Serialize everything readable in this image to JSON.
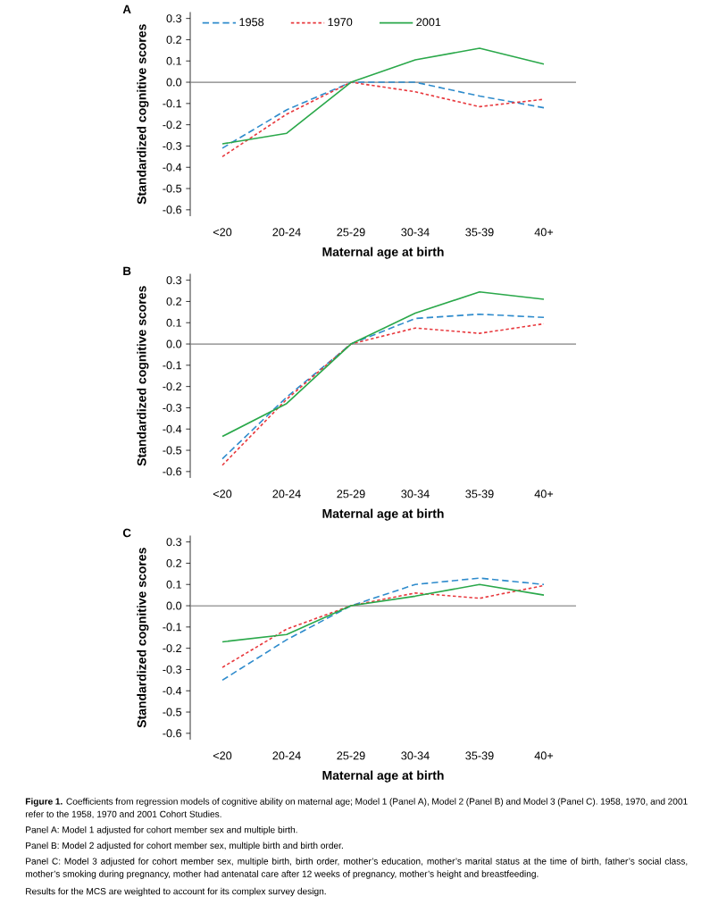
{
  "chart_data": [
    {
      "type": "line",
      "title": "A",
      "xlabel": "Maternal age at birth",
      "ylabel": "Standardized cognitive scores",
      "categories": [
        "<20",
        "20-24",
        "25-29",
        "30-34",
        "35-39",
        "40+"
      ],
      "series": [
        {
          "name": "1958",
          "color": "#2e8bcc",
          "line_style": "dashed",
          "values": [
            -0.31,
            -0.13,
            0.0,
            0.0,
            -0.065,
            -0.12
          ]
        },
        {
          "name": "1970",
          "color": "#e8383d",
          "line_style": "dotted",
          "values": [
            -0.35,
            -0.15,
            0.0,
            -0.045,
            -0.115,
            -0.08
          ]
        },
        {
          "name": "2001",
          "color": "#2aa84a",
          "line_style": "solid",
          "values": [
            -0.29,
            -0.24,
            0.0,
            0.105,
            0.16,
            0.085
          ]
        }
      ],
      "ylim": [
        -0.63,
        0.33
      ],
      "yticks": [
        {
          "value": -0.6,
          "label": "-0.6"
        },
        {
          "value": -0.5,
          "label": "-0.5"
        },
        {
          "value": -0.4,
          "label": "-0.4"
        },
        {
          "value": -0.3,
          "label": "-0.3"
        },
        {
          "value": -0.2,
          "label": "-0.2"
        },
        {
          "value": -0.1,
          "label": "-0.1"
        },
        {
          "value": 0,
          "label": "0.0"
        },
        {
          "value": 0.1,
          "label": "0.1"
        },
        {
          "value": 0.2,
          "label": "0.2"
        },
        {
          "value": 0.3,
          "label": "0.3"
        }
      ],
      "ref_lines": [
        {
          "axis": "y",
          "value": 0,
          "color": "#808080"
        }
      ],
      "legend": "top left",
      "grid": false,
      "marker": "none"
    },
    {
      "type": "line",
      "title": "B",
      "xlabel": "Maternal age at birth",
      "ylabel": "Standardized cognitive scores",
      "categories": [
        "<20",
        "20-24",
        "25-29",
        "30-34",
        "35-39",
        "40+"
      ],
      "series": [
        {
          "color": "#2e8bcc",
          "line_style": "dashed",
          "values": [
            -0.54,
            -0.25,
            0.0,
            0.12,
            0.14,
            0.125
          ]
        },
        {
          "color": "#e8383d",
          "line_style": "dotted",
          "values": [
            -0.57,
            -0.26,
            0.0,
            0.075,
            0.05,
            0.095
          ]
        },
        {
          "color": "#2aa84a",
          "line_style": "solid",
          "values": [
            -0.435,
            -0.28,
            0.0,
            0.145,
            0.245,
            0.21
          ]
        }
      ],
      "ylim": [
        -0.63,
        0.33
      ],
      "yticks": [
        {
          "value": -0.6,
          "label": "-0.6"
        },
        {
          "value": -0.5,
          "label": "-0.5"
        },
        {
          "value": -0.4,
          "label": "-0.4"
        },
        {
          "value": -0.3,
          "label": "-0.3"
        },
        {
          "value": -0.2,
          "label": "-0.2"
        },
        {
          "value": -0.1,
          "label": "-0.1"
        },
        {
          "value": 0,
          "label": "0.0"
        },
        {
          "value": 0.1,
          "label": "0.1"
        },
        {
          "value": 0.2,
          "label": "0.2"
        },
        {
          "value": 0.3,
          "label": "0.3"
        }
      ],
      "ref_lines": [
        {
          "axis": "y",
          "value": 0,
          "color": "#808080"
        }
      ],
      "grid": false,
      "marker": "none"
    },
    {
      "type": "line",
      "title": "C",
      "xlabel": "Maternal age at birth",
      "ylabel": "Standardized cognitive scores",
      "categories": [
        "<20",
        "20-24",
        "25-29",
        "30-34",
        "35-39",
        "40+"
      ],
      "series": [
        {
          "color": "#2e8bcc",
          "line_style": "dashed",
          "values": [
            -0.35,
            -0.16,
            0.0,
            0.1,
            0.13,
            0.1
          ]
        },
        {
          "color": "#e8383d",
          "line_style": "dotted",
          "values": [
            -0.29,
            -0.11,
            0.0,
            0.06,
            0.035,
            0.095
          ]
        },
        {
          "color": "#2aa84a",
          "line_style": "solid",
          "values": [
            -0.17,
            -0.135,
            0.0,
            0.045,
            0.1,
            0.05
          ]
        }
      ],
      "ylim": [
        -0.63,
        0.33
      ],
      "yticks": [
        {
          "value": -0.6,
          "label": "-0.6"
        },
        {
          "value": -0.5,
          "label": "-0.5"
        },
        {
          "value": -0.4,
          "label": "-0.4"
        },
        {
          "value": -0.3,
          "label": "-0.3"
        },
        {
          "value": -0.2,
          "label": "-0.2"
        },
        {
          "value": -0.1,
          "label": "-0.1"
        },
        {
          "value": 0,
          "label": "0.0"
        },
        {
          "value": 0.1,
          "label": "0.1"
        },
        {
          "value": 0.2,
          "label": "0.2"
        },
        {
          "value": 0.3,
          "label": "0.3"
        }
      ],
      "ref_lines": [
        {
          "axis": "y",
          "value": 0,
          "color": "#808080"
        }
      ],
      "grid": false,
      "marker": "none",
      "annotations": [
        "**Figure 1.** Coefficients from regression models of cognitive ability on maternal age; Model 1 (Panel A), Model 2 (Panel B) and Model 3 (Panel C). 1958, 1970, and 2001 refer to the 1958, 1970 and 2001 Cohort Studies.",
        "Panel A: Model 1 adjusted for cohort member sex and multiple birth.",
        "Panel B: Model 2 adjusted for cohort member sex, multiple birth and birth order.",
        "Panel C: Model 3 adjusted for cohort member sex, multiple birth, birth order, mother’s education, mother’s marital status at the time of birth, father’s social class, mother’s smoking during pregnancy, mother had antenatal care after 12 weeks of pregnancy, mother’s height and breastfeeding.",
        "Results for the MCS are weighted to account for its complex survey design."
      ]
    }
  ]
}
